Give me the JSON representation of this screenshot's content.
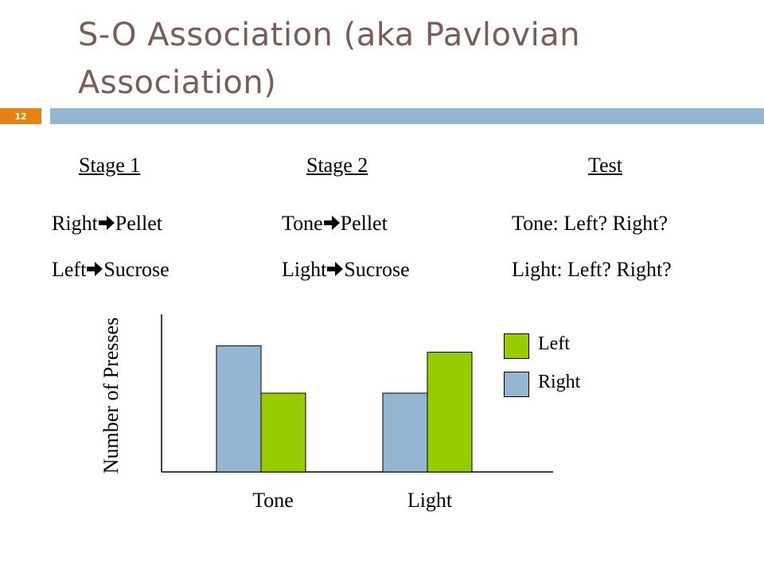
{
  "slide": {
    "title": "S-O Association (aka Pavlovian Association)",
    "number": "12"
  },
  "stages": [
    {
      "heading": "Stage 1",
      "lines": [
        {
          "a": "Right",
          "b": "Pellet"
        },
        {
          "a": "Left",
          "b": "Sucrose"
        }
      ]
    },
    {
      "heading": "Stage 2",
      "lines": [
        {
          "a": "Tone",
          "b": "Pellet"
        },
        {
          "a": "Light",
          "b": "Sucrose"
        }
      ]
    },
    {
      "heading": "Test",
      "lines": [
        {
          "text": "Tone: Left? Right?"
        },
        {
          "text": "Light: Left? Right?"
        }
      ]
    }
  ],
  "colors": {
    "title": "#7a5c58",
    "rule": "#94b6d2",
    "badge": "#e48312",
    "left": "#99cc00",
    "right": "#94b6d2"
  },
  "chart_data": {
    "type": "bar",
    "categories": [
      "Tone",
      "Light"
    ],
    "series": [
      {
        "name": "Right",
        "color": "#94b6d2",
        "values": [
          8,
          5
        ]
      },
      {
        "name": "Left",
        "color": "#99cc00",
        "values": [
          5,
          7.6
        ]
      }
    ],
    "ylabel": "Number of Presses",
    "ylim": [
      0,
      10
    ],
    "legend": [
      "Left",
      "Right"
    ],
    "legend_position": "right",
    "grid": false,
    "axis_ticks": false
  }
}
